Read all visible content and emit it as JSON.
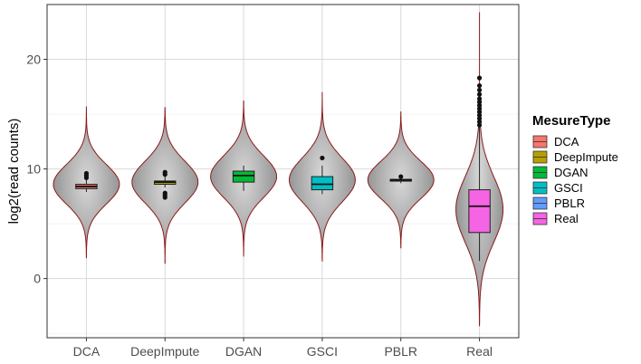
{
  "chart_data": {
    "type": "violin",
    "title": "",
    "xlabel": "",
    "ylabel": "log2(read counts)",
    "ylim": [
      -5.4,
      25
    ],
    "yticks": [
      0,
      10,
      20
    ],
    "grid": true,
    "legend_position": "right",
    "legend_title": "MesureType",
    "violin_fill": "#a3a3a3",
    "violin_outline": "#8b1a1a",
    "categories": [
      "DCA",
      "DeepImpute",
      "DGAN",
      "GSCI",
      "PBLR",
      "Real"
    ],
    "series": [
      {
        "name": "DCA",
        "color": "#f8766d",
        "violin": {
          "min": 1.9,
          "max": 15.7,
          "mean": 8.6,
          "sd": 1.8,
          "max_half_width": 0.42
        },
        "box": {
          "q1": 8.2,
          "median": 8.4,
          "q3": 8.6,
          "whisker_low": 7.9,
          "whisker_high": 9.1
        },
        "outliers": [
          9.2,
          9.4,
          9.6
        ]
      },
      {
        "name": "DeepImpute",
        "color": "#b79f00",
        "violin": {
          "min": 1.4,
          "max": 15.6,
          "mean": 8.8,
          "sd": 1.9,
          "max_half_width": 0.42
        },
        "box": {
          "q1": 8.6,
          "median": 8.8,
          "q3": 8.9,
          "whisker_low": 8.3,
          "whisker_high": 9.4
        },
        "outliers": [
          7.4,
          7.6,
          7.8,
          9.5,
          9.7
        ]
      },
      {
        "name": "DGAN",
        "color": "#00ba38",
        "violin": {
          "min": 2.0,
          "max": 16.2,
          "mean": 9.3,
          "sd": 1.9,
          "max_half_width": 0.42
        },
        "box": {
          "q1": 8.8,
          "median": 9.4,
          "q3": 9.8,
          "whisker_low": 8.0,
          "whisker_high": 10.3
        },
        "outliers": []
      },
      {
        "name": "GSCI",
        "color": "#00bfc4",
        "violin": {
          "min": 1.6,
          "max": 17.0,
          "mean": 9.0,
          "sd": 2.0,
          "max_half_width": 0.42
        },
        "box": {
          "q1": 8.1,
          "median": 8.6,
          "q3": 9.3,
          "whisker_low": 7.7,
          "whisker_high": 10.3
        },
        "outliers": [
          11.0
        ]
      },
      {
        "name": "PBLR",
        "color": "#619cff",
        "violin": {
          "min": 2.8,
          "max": 15.2,
          "mean": 9.0,
          "sd": 1.7,
          "max_half_width": 0.42
        },
        "box": {
          "q1": 8.9,
          "median": 9.0,
          "q3": 9.05,
          "whisker_low": 8.7,
          "whisker_high": 9.2
        },
        "outliers": [
          9.3
        ]
      },
      {
        "name": "Real",
        "color": "#f564e3",
        "violin": {
          "min": -4.3,
          "max": 24.3,
          "mean": 6.3,
          "sd": 3.0,
          "max_half_width": 0.3
        },
        "box": {
          "q1": 4.2,
          "median": 6.6,
          "q3": 8.1,
          "whisker_low": 1.6,
          "whisker_high": 13.8
        },
        "outliers": [
          14.0,
          14.3,
          14.6,
          14.9,
          15.2,
          15.5,
          15.8,
          16.1,
          16.4,
          16.8,
          17.2,
          17.6,
          18.3
        ]
      }
    ]
  }
}
